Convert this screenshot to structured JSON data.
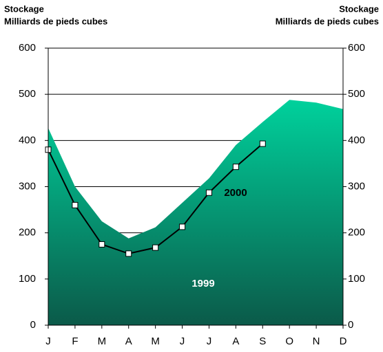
{
  "chart_data": {
    "type": "area",
    "ylabel": [
      "Stockage",
      "Milliards de pieds cubes"
    ],
    "y2label": [
      "Stockage",
      "Milliards de pieds cubes"
    ],
    "categories": [
      "J",
      "F",
      "M",
      "A",
      "M",
      "J",
      "J",
      "A",
      "S",
      "O",
      "N",
      "D"
    ],
    "series": [
      {
        "name": "1999",
        "type": "area",
        "color": "#00d19c",
        "gradient_end": "#0b5a49",
        "values": [
          427,
          300,
          225,
          188,
          212,
          265,
          318,
          390,
          440,
          488,
          482,
          468
        ]
      },
      {
        "name": "2000",
        "type": "line",
        "color": "#000000",
        "values": [
          380,
          260,
          175,
          155,
          168,
          213,
          287,
          343,
          393,
          null,
          null,
          null
        ]
      }
    ],
    "ylim": [
      0,
      600
    ],
    "yticks": [
      0,
      100,
      200,
      300,
      400,
      500,
      600
    ],
    "y2lim": [
      0,
      600
    ],
    "y2ticks": [
      0,
      100,
      200,
      300,
      400,
      500,
      600
    ],
    "grid": true
  }
}
